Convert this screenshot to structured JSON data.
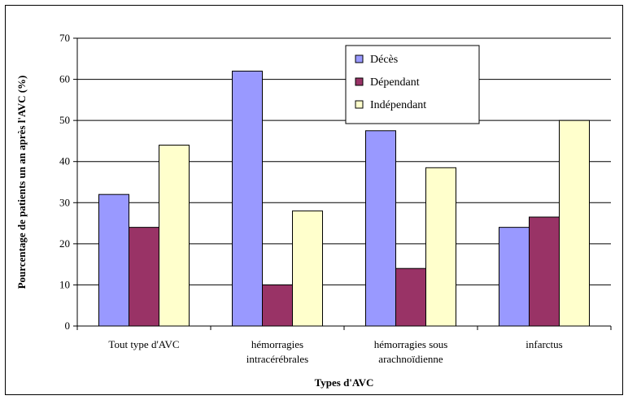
{
  "chart_data": {
    "type": "bar",
    "title": "",
    "xlabel": "Types d'AVC",
    "ylabel": "Pourcentage de patients un an après l'AVC (%)",
    "ylim": [
      0,
      70
    ],
    "yticks": [
      0,
      10,
      20,
      30,
      40,
      50,
      60,
      70
    ],
    "grid": true,
    "legend_position": "top-center",
    "categories": [
      [
        "Tout type d'AVC"
      ],
      [
        "hémorragies",
        "intracérébrales"
      ],
      [
        "hémorragies sous",
        "arachnoïdienne"
      ],
      [
        "infarctus"
      ]
    ],
    "series": [
      {
        "name": "Décès",
        "color": "#9999ff",
        "values": [
          32,
          62,
          47.5,
          24
        ]
      },
      {
        "name": "Dépendant",
        "color": "#993366",
        "values": [
          24,
          10,
          14,
          26.5
        ]
      },
      {
        "name": "Indépendant",
        "color": "#ffffcc",
        "values": [
          44,
          28,
          38.5,
          50
        ]
      }
    ]
  }
}
